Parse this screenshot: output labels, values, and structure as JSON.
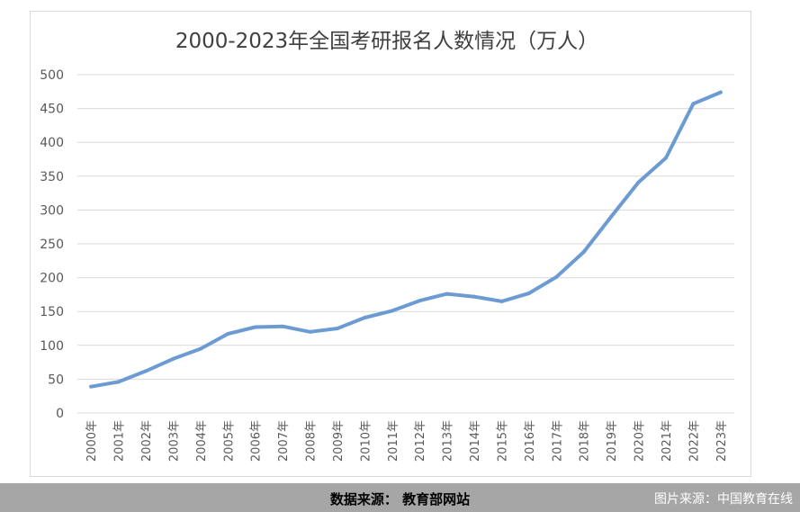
{
  "chart_data": {
    "type": "line",
    "title": "2000-2023年全国考研报名人数情况（万人）",
    "categories": [
      "2000年",
      "2001年",
      "2002年",
      "2003年",
      "2004年",
      "2005年",
      "2006年",
      "2007年",
      "2008年",
      "2009年",
      "2010年",
      "2011年",
      "2012年",
      "2013年",
      "2014年",
      "2015年",
      "2016年",
      "2017年",
      "2018年",
      "2019年",
      "2020年",
      "2021年",
      "2022年",
      "2023年"
    ],
    "series": [
      {
        "values": [
          39,
          46,
          62,
          80,
          95,
          117,
          127,
          128,
          120,
          125,
          141,
          151,
          166,
          176,
          172,
          165,
          177,
          201,
          238,
          290,
          341,
          377,
          457,
          474
        ]
      }
    ],
    "yticks": [
      "0",
      "50",
      "100",
      "150",
      "200",
      "250",
      "300",
      "350",
      "400",
      "450",
      "500"
    ],
    "ylim": [
      0,
      500
    ],
    "grid": true,
    "line_color": "#6b9bd2"
  },
  "footer": {
    "source": "数据来源：  教育部网站",
    "credit": "图片来源：中国教育在线"
  }
}
